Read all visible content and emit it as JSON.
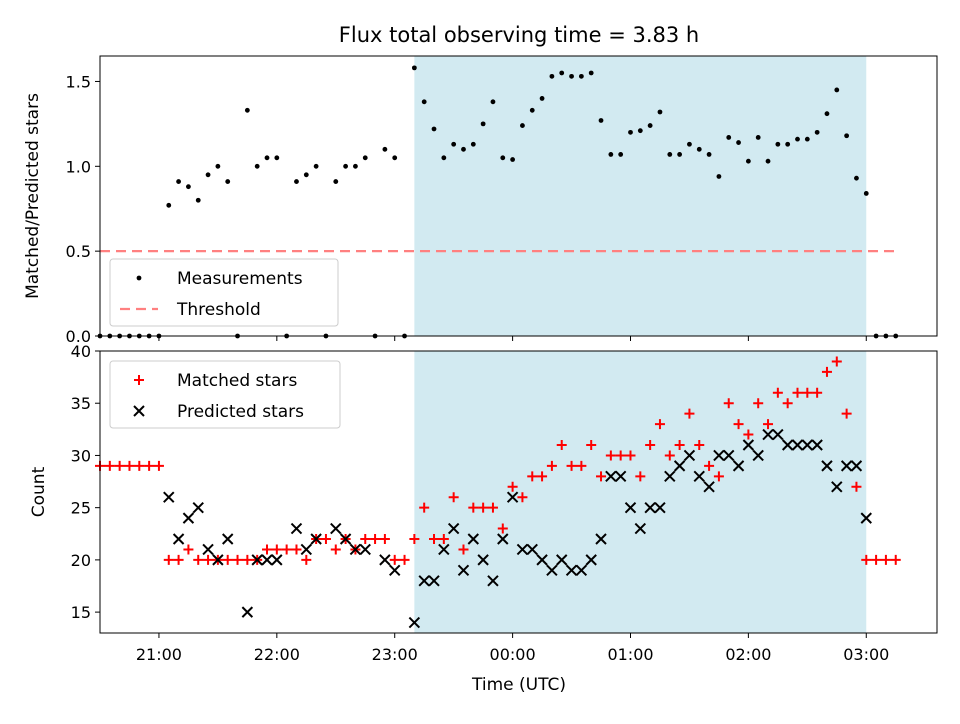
{
  "figure": {
    "title": "Flux total observing time = 3.83 h",
    "xlabel": "Time (UTC)",
    "x_tick_labels": [
      "21:00",
      "22:00",
      "23:00",
      "00:00",
      "01:00",
      "02:00",
      "03:00"
    ],
    "colors": {
      "shade": "#add8e6",
      "measure": "#000000",
      "threshold": "#ff8080",
      "matched": "#ff0000",
      "predicted": "#000000"
    }
  },
  "chart_data": [
    {
      "type": "scatter",
      "title": "Flux total observing time = 3.83 h",
      "ylabel": "Matched/Predicted stars",
      "xlabel": "",
      "x_unit": "hours after 21:00 UTC",
      "xlim": [
        "20:30",
        "03:36"
      ],
      "ylim": [
        0,
        1.65
      ],
      "y_ticks": [
        "0.0",
        "0.5",
        "1.0",
        "1.5"
      ],
      "shaded_interval": [
        "23:10",
        "03:00"
      ],
      "legend": {
        "placement": "lower-left",
        "entries": [
          "Measurements",
          "Threshold"
        ]
      },
      "threshold": {
        "name": "Threshold",
        "y": 0.5,
        "x_range": [
          "20:30",
          "03:15"
        ],
        "style": "dashed"
      },
      "series": [
        {
          "name": "Measurements",
          "points": [
            [
              "20:30",
              0.0
            ],
            [
              "20:35",
              0.0
            ],
            [
              "20:40",
              0.0
            ],
            [
              "20:45",
              0.0
            ],
            [
              "20:50",
              0.0
            ],
            [
              "20:55",
              0.0
            ],
            [
              "21:00",
              0.0
            ],
            [
              "21:05",
              0.77
            ],
            [
              "21:10",
              0.91
            ],
            [
              "21:15",
              0.88
            ],
            [
              "21:20",
              0.8
            ],
            [
              "21:25",
              0.95
            ],
            [
              "21:30",
              1.0
            ],
            [
              "21:35",
              0.91
            ],
            [
              "21:40",
              0.0
            ],
            [
              "21:45",
              1.33
            ],
            [
              "21:50",
              1.0
            ],
            [
              "21:55",
              1.05
            ],
            [
              "22:00",
              1.05
            ],
            [
              "22:05",
              0.0
            ],
            [
              "22:10",
              0.91
            ],
            [
              "22:15",
              0.95
            ],
            [
              "22:20",
              1.0
            ],
            [
              "22:25",
              0.0
            ],
            [
              "22:30",
              0.91
            ],
            [
              "22:35",
              1.0
            ],
            [
              "22:40",
              1.0
            ],
            [
              "22:45",
              1.05
            ],
            [
              "22:50",
              0.0
            ],
            [
              "22:55",
              1.1
            ],
            [
              "23:00",
              1.05
            ],
            [
              "23:05",
              0.0
            ],
            [
              "23:10",
              1.58
            ],
            [
              "23:15",
              1.38
            ],
            [
              "23:20",
              1.22
            ],
            [
              "23:25",
              1.05
            ],
            [
              "23:30",
              1.13
            ],
            [
              "23:35",
              1.1
            ],
            [
              "23:40",
              1.13
            ],
            [
              "23:45",
              1.25
            ],
            [
              "23:50",
              1.38
            ],
            [
              "23:55",
              1.05
            ],
            [
              "00:00",
              1.04
            ],
            [
              "00:05",
              1.24
            ],
            [
              "00:10",
              1.33
            ],
            [
              "00:15",
              1.4
            ],
            [
              "00:20",
              1.53
            ],
            [
              "00:25",
              1.55
            ],
            [
              "00:30",
              1.53
            ],
            [
              "00:35",
              1.53
            ],
            [
              "00:40",
              1.55
            ],
            [
              "00:45",
              1.27
            ],
            [
              "00:50",
              1.07
            ],
            [
              "00:55",
              1.07
            ],
            [
              "01:00",
              1.2
            ],
            [
              "01:05",
              1.21
            ],
            [
              "01:10",
              1.24
            ],
            [
              "01:15",
              1.32
            ],
            [
              "01:20",
              1.07
            ],
            [
              "01:25",
              1.07
            ],
            [
              "01:30",
              1.13
            ],
            [
              "01:35",
              1.1
            ],
            [
              "01:40",
              1.07
            ],
            [
              "01:45",
              0.94
            ],
            [
              "01:50",
              1.17
            ],
            [
              "01:55",
              1.14
            ],
            [
              "02:00",
              1.03
            ],
            [
              "02:05",
              1.17
            ],
            [
              "02:10",
              1.03
            ],
            [
              "02:15",
              1.13
            ],
            [
              "02:20",
              1.13
            ],
            [
              "02:25",
              1.16
            ],
            [
              "02:30",
              1.16
            ],
            [
              "02:35",
              1.2
            ],
            [
              "02:40",
              1.31
            ],
            [
              "02:45",
              1.45
            ],
            [
              "02:50",
              1.18
            ],
            [
              "02:55",
              0.93
            ],
            [
              "03:00",
              0.84
            ],
            [
              "03:05",
              0.0
            ],
            [
              "03:10",
              0.0
            ],
            [
              "03:15",
              0.0
            ]
          ]
        }
      ]
    },
    {
      "type": "scatter",
      "title": "",
      "xlabel": "Time (UTC)",
      "ylabel": "Count",
      "x_unit": "hours after 21:00 UTC",
      "xlim": [
        "20:30",
        "03:36"
      ],
      "ylim": [
        13,
        40
      ],
      "y_ticks": [
        "15",
        "20",
        "25",
        "30",
        "35",
        "40"
      ],
      "shaded_interval": [
        "23:10",
        "03:00"
      ],
      "legend": {
        "placement": "upper-left",
        "entries": [
          "Matched stars",
          "Predicted stars"
        ]
      },
      "series": [
        {
          "name": "Matched stars",
          "marker": "+",
          "points": [
            [
              "20:30",
              29
            ],
            [
              "20:35",
              29
            ],
            [
              "20:40",
              29
            ],
            [
              "20:45",
              29
            ],
            [
              "20:50",
              29
            ],
            [
              "20:55",
              29
            ],
            [
              "21:00",
              29
            ],
            [
              "21:05",
              20
            ],
            [
              "21:10",
              20
            ],
            [
              "21:15",
              21
            ],
            [
              "21:20",
              20
            ],
            [
              "21:25",
              20
            ],
            [
              "21:30",
              20
            ],
            [
              "21:35",
              20
            ],
            [
              "21:40",
              20
            ],
            [
              "21:45",
              20
            ],
            [
              "21:50",
              20
            ],
            [
              "21:55",
              21
            ],
            [
              "22:00",
              21
            ],
            [
              "22:05",
              21
            ],
            [
              "22:10",
              21
            ],
            [
              "22:15",
              20
            ],
            [
              "22:20",
              22
            ],
            [
              "22:25",
              22
            ],
            [
              "22:30",
              21
            ],
            [
              "22:35",
              22
            ],
            [
              "22:40",
              21
            ],
            [
              "22:45",
              22
            ],
            [
              "22:50",
              22
            ],
            [
              "22:55",
              22
            ],
            [
              "23:00",
              20
            ],
            [
              "23:05",
              20
            ],
            [
              "23:10",
              22
            ],
            [
              "23:15",
              25
            ],
            [
              "23:20",
              22
            ],
            [
              "23:25",
              22
            ],
            [
              "23:30",
              26
            ],
            [
              "23:35",
              21
            ],
            [
              "23:40",
              25
            ],
            [
              "23:45",
              25
            ],
            [
              "23:50",
              25
            ],
            [
              "23:55",
              23
            ],
            [
              "00:00",
              27
            ],
            [
              "00:05",
              26
            ],
            [
              "00:10",
              28
            ],
            [
              "00:15",
              28
            ],
            [
              "00:20",
              29
            ],
            [
              "00:25",
              31
            ],
            [
              "00:30",
              29
            ],
            [
              "00:35",
              29
            ],
            [
              "00:40",
              31
            ],
            [
              "00:45",
              28
            ],
            [
              "00:50",
              30
            ],
            [
              "00:55",
              30
            ],
            [
              "01:00",
              30
            ],
            [
              "01:05",
              28
            ],
            [
              "01:10",
              31
            ],
            [
              "01:15",
              33
            ],
            [
              "01:20",
              30
            ],
            [
              "01:25",
              31
            ],
            [
              "01:30",
              34
            ],
            [
              "01:35",
              31
            ],
            [
              "01:40",
              29
            ],
            [
              "01:45",
              28
            ],
            [
              "01:50",
              35
            ],
            [
              "01:55",
              33
            ],
            [
              "02:00",
              32
            ],
            [
              "02:05",
              35
            ],
            [
              "02:10",
              33
            ],
            [
              "02:15",
              36
            ],
            [
              "02:20",
              35
            ],
            [
              "02:25",
              36
            ],
            [
              "02:30",
              36
            ],
            [
              "02:35",
              36
            ],
            [
              "02:40",
              38
            ],
            [
              "02:45",
              39
            ],
            [
              "02:50",
              34
            ],
            [
              "02:55",
              27
            ],
            [
              "03:00",
              20
            ],
            [
              "03:05",
              20
            ],
            [
              "03:10",
              20
            ],
            [
              "03:15",
              20
            ]
          ]
        },
        {
          "name": "Predicted stars",
          "marker": "x",
          "points": [
            [
              "21:05",
              26
            ],
            [
              "21:10",
              22
            ],
            [
              "21:15",
              24
            ],
            [
              "21:20",
              25
            ],
            [
              "21:25",
              21
            ],
            [
              "21:30",
              20
            ],
            [
              "21:35",
              22
            ],
            [
              "21:45",
              15
            ],
            [
              "21:50",
              20
            ],
            [
              "21:55",
              20
            ],
            [
              "22:00",
              20
            ],
            [
              "22:10",
              23
            ],
            [
              "22:15",
              21
            ],
            [
              "22:20",
              22
            ],
            [
              "22:30",
              23
            ],
            [
              "22:35",
              22
            ],
            [
              "22:40",
              21
            ],
            [
              "22:45",
              21
            ],
            [
              "22:55",
              20
            ],
            [
              "23:00",
              19
            ],
            [
              "23:10",
              14
            ],
            [
              "23:15",
              18
            ],
            [
              "23:20",
              18
            ],
            [
              "23:25",
              21
            ],
            [
              "23:30",
              23
            ],
            [
              "23:35",
              19
            ],
            [
              "23:40",
              22
            ],
            [
              "23:45",
              20
            ],
            [
              "23:50",
              18
            ],
            [
              "23:55",
              22
            ],
            [
              "00:00",
              26
            ],
            [
              "00:05",
              21
            ],
            [
              "00:10",
              21
            ],
            [
              "00:15",
              20
            ],
            [
              "00:20",
              19
            ],
            [
              "00:25",
              20
            ],
            [
              "00:30",
              19
            ],
            [
              "00:35",
              19
            ],
            [
              "00:40",
              20
            ],
            [
              "00:45",
              22
            ],
            [
              "00:50",
              28
            ],
            [
              "00:55",
              28
            ],
            [
              "01:00",
              25
            ],
            [
              "01:05",
              23
            ],
            [
              "01:10",
              25
            ],
            [
              "01:15",
              25
            ],
            [
              "01:20",
              28
            ],
            [
              "01:25",
              29
            ],
            [
              "01:30",
              30
            ],
            [
              "01:35",
              28
            ],
            [
              "01:40",
              27
            ],
            [
              "01:45",
              30
            ],
            [
              "01:50",
              30
            ],
            [
              "01:55",
              29
            ],
            [
              "02:00",
              31
            ],
            [
              "02:05",
              30
            ],
            [
              "02:10",
              32
            ],
            [
              "02:15",
              32
            ],
            [
              "02:20",
              31
            ],
            [
              "02:25",
              31
            ],
            [
              "02:30",
              31
            ],
            [
              "02:35",
              31
            ],
            [
              "02:40",
              29
            ],
            [
              "02:45",
              27
            ],
            [
              "02:50",
              29
            ],
            [
              "02:55",
              29
            ],
            [
              "03:00",
              24
            ]
          ]
        }
      ]
    }
  ]
}
